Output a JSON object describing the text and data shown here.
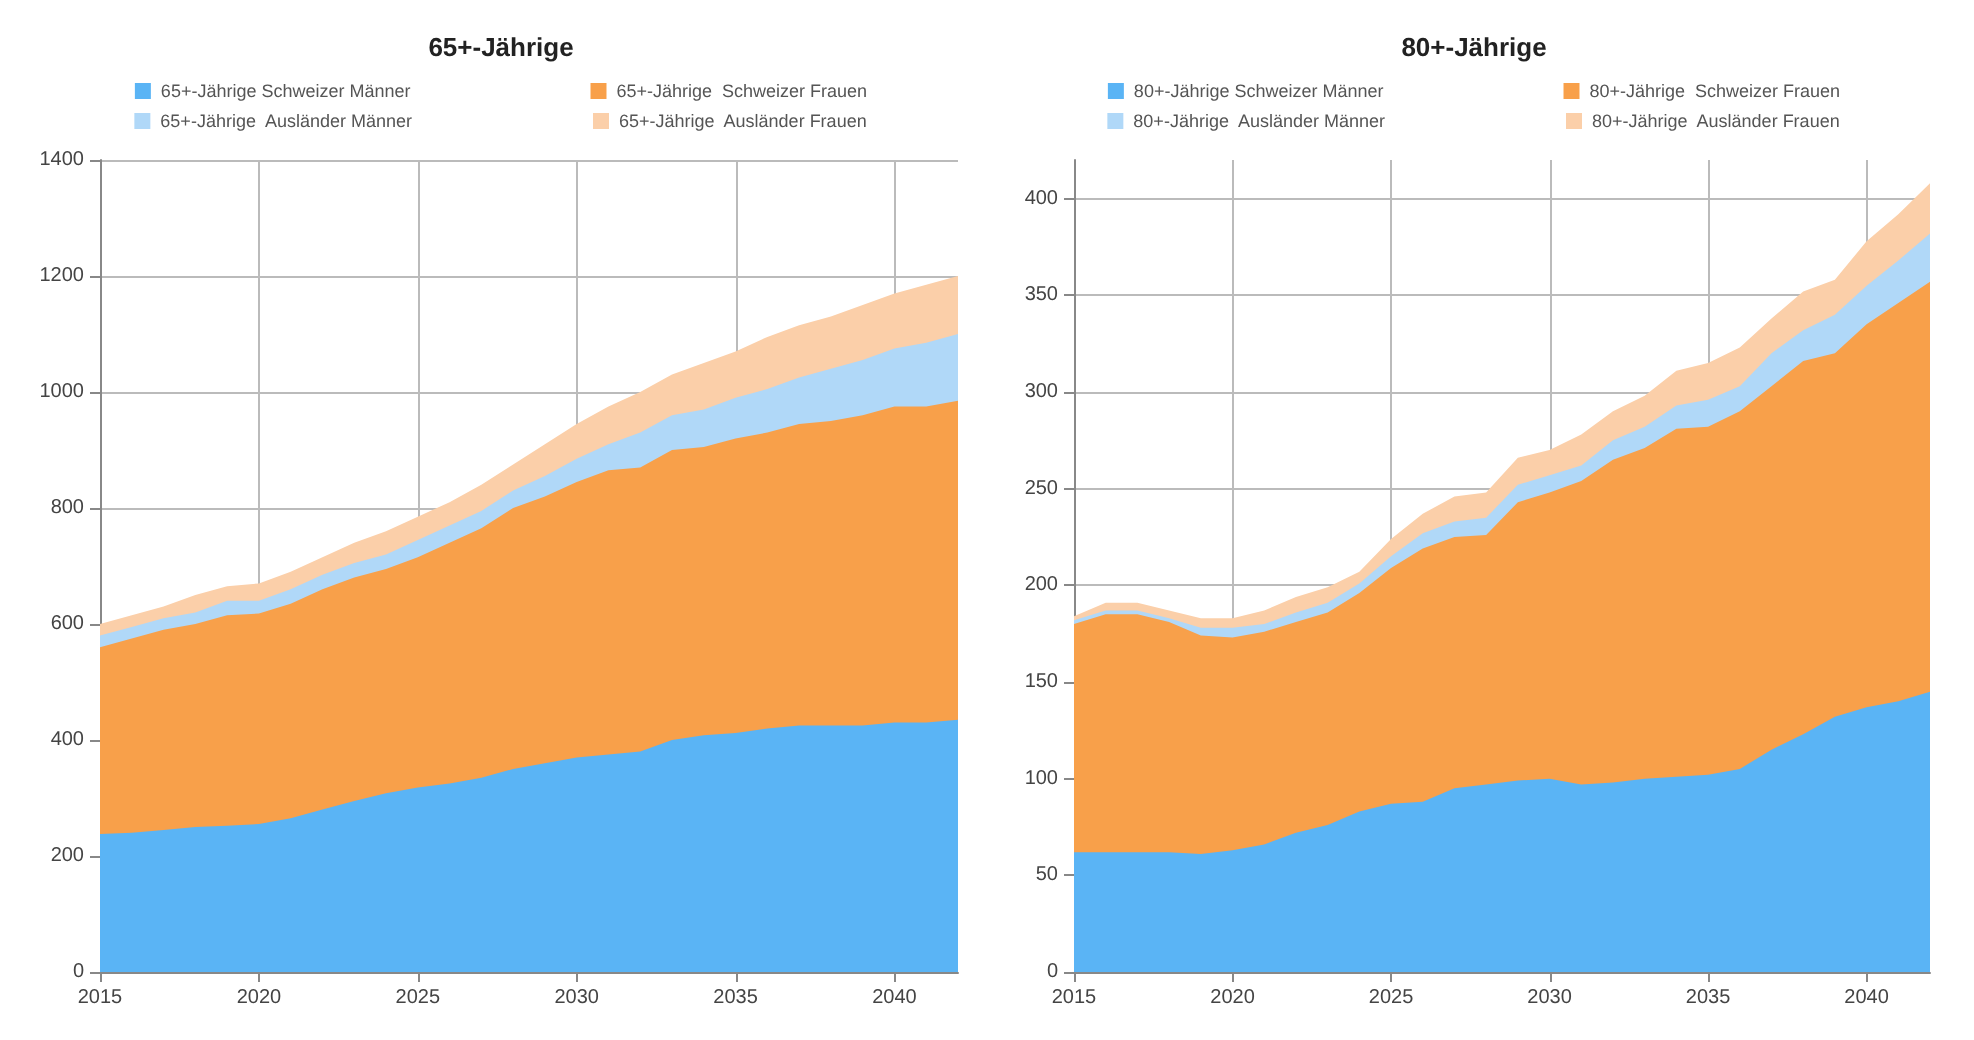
{
  "chart_data": [
    {
      "type": "area",
      "title": "65+-Jährige",
      "stacked": true,
      "x": [
        2015,
        2016,
        2017,
        2018,
        2019,
        2020,
        2021,
        2022,
        2023,
        2024,
        2025,
        2026,
        2027,
        2028,
        2029,
        2030,
        2031,
        2032,
        2033,
        2034,
        2035,
        2036,
        2037,
        2038,
        2039,
        2040,
        2041,
        2042
      ],
      "xlim": [
        2015,
        2042
      ],
      "xticks": [
        2015,
        2020,
        2025,
        2030,
        2035,
        2040
      ],
      "ylim": [
        0,
        1400
      ],
      "yticks": [
        0,
        200,
        400,
        600,
        800,
        1000,
        1200,
        1400
      ],
      "grid": true,
      "legend": "top",
      "series": [
        {
          "name": "65+-Jährige Schweizer Männer",
          "color": "#5ab4f5",
          "values": [
            238,
            240,
            245,
            250,
            252,
            255,
            265,
            280,
            295,
            308,
            318,
            325,
            335,
            350,
            360,
            370,
            375,
            380,
            400,
            408,
            412,
            420,
            425,
            425,
            425,
            430,
            430,
            435
          ]
        },
        {
          "name": "65+-Jährige  Schweizer Frauen",
          "color": "#f8a04a",
          "values": [
            322,
            335,
            345,
            350,
            363,
            363,
            370,
            380,
            385,
            387,
            397,
            415,
            430,
            450,
            460,
            475,
            490,
            490,
            500,
            497,
            508,
            510,
            520,
            525,
            535,
            545,
            545,
            550
          ]
        },
        {
          "name": "65+-Jährige  Ausländer Männer",
          "color": "#b0d8f8",
          "values": [
            20,
            20,
            20,
            20,
            25,
            22,
            25,
            25,
            25,
            25,
            30,
            30,
            30,
            30,
            35,
            40,
            45,
            60,
            60,
            65,
            70,
            75,
            80,
            90,
            95,
            100,
            110,
            115
          ]
        },
        {
          "name": "65+-Jährige  Ausländer Frauen",
          "color": "#fbcfa9",
          "values": [
            20,
            20,
            20,
            30,
            25,
            30,
            30,
            30,
            35,
            40,
            40,
            40,
            45,
            45,
            55,
            60,
            65,
            70,
            70,
            80,
            80,
            90,
            90,
            90,
            95,
            95,
            100,
            100
          ]
        }
      ]
    },
    {
      "type": "area",
      "title": "80+-Jährige",
      "stacked": true,
      "x": [
        2015,
        2016,
        2017,
        2018,
        2019,
        2020,
        2021,
        2022,
        2023,
        2024,
        2025,
        2026,
        2027,
        2028,
        2029,
        2030,
        2031,
        2032,
        2033,
        2034,
        2035,
        2036,
        2037,
        2038,
        2039,
        2040,
        2041,
        2042
      ],
      "xlim": [
        2015,
        2042
      ],
      "xticks": [
        2015,
        2020,
        2025,
        2030,
        2035,
        2040
      ],
      "ylim": [
        0,
        420
      ],
      "yticks": [
        0,
        50,
        100,
        150,
        200,
        250,
        300,
        350,
        400
      ],
      "grid": true,
      "legend": "top",
      "series": [
        {
          "name": "80+-Jährige Schweizer Männer",
          "color": "#5ab4f5",
          "values": [
            62,
            62,
            62,
            62,
            61,
            63,
            66,
            72,
            76,
            83,
            87,
            88,
            95,
            97,
            99,
            100,
            97,
            98,
            100,
            101,
            102,
            105,
            115,
            123,
            132,
            137,
            140,
            145
          ]
        },
        {
          "name": "80+-Jährige  Schweizer Frauen",
          "color": "#f8a04a",
          "values": [
            118,
            123,
            123,
            119,
            113,
            110,
            110,
            109,
            110,
            113,
            122,
            131,
            130,
            129,
            144,
            148,
            157,
            167,
            171,
            180,
            180,
            185,
            188,
            193,
            188,
            198,
            206,
            212
          ]
        },
        {
          "name": "80+-Jährige  Ausländer Männer",
          "color": "#b0d8f8",
          "values": [
            2,
            2,
            2,
            2,
            4,
            5,
            4,
            5,
            5,
            5,
            6,
            8,
            8,
            9,
            9,
            9,
            8,
            10,
            11,
            12,
            14,
            13,
            17,
            16,
            20,
            20,
            22,
            25
          ]
        },
        {
          "name": "80+-Jährige  Ausländer Frauen",
          "color": "#fbcfa9",
          "values": [
            2,
            4,
            4,
            4,
            5,
            5,
            7,
            8,
            8,
            6,
            9,
            10,
            13,
            13,
            14,
            13,
            16,
            15,
            16,
            18,
            19,
            20,
            18,
            20,
            18,
            23,
            24,
            26
          ]
        }
      ]
    }
  ]
}
